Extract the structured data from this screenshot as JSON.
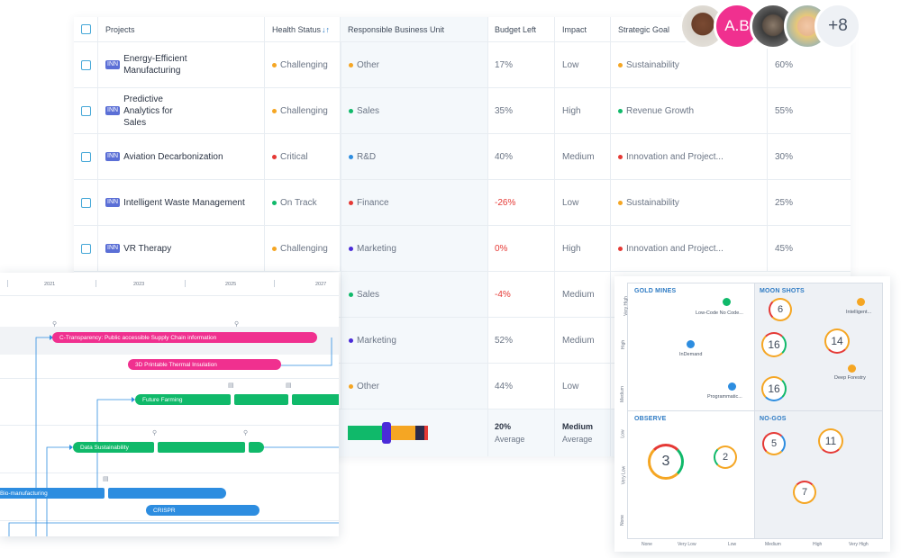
{
  "header": {
    "projects": "Projects",
    "health": "Health Status",
    "sort_icon": "↓↑",
    "unit": "Responsible Business Unit",
    "budget": "Budget Left",
    "impact": "Impact",
    "goal": "Strategic Goal"
  },
  "tag_label": "INN",
  "rows": [
    {
      "name": "Energy-Efficient Manufacturing",
      "health": "Challenging",
      "unit": "Other",
      "budget": "17%",
      "impact": "Low",
      "goal": "Sustainability",
      "pct": "60%"
    },
    {
      "name": "Predictive Analytics for Sales",
      "health": "Challenging",
      "unit": "Sales",
      "budget": "35%",
      "impact": "High",
      "goal": "Revenue Growth",
      "pct": "55%"
    },
    {
      "name": "Aviation Decarbonization",
      "health": "Critical",
      "unit": "R&D",
      "budget": "40%",
      "impact": "Medium",
      "goal": "Innovation and Project...",
      "pct": "30%"
    },
    {
      "name": "Intelligent Waste Management",
      "health": "On Track",
      "unit": "Finance",
      "budget": "-26%",
      "impact": "Low",
      "goal": "Sustainability",
      "pct": "25%"
    },
    {
      "name": "VR Therapy",
      "health": "Challenging",
      "unit": "Marketing",
      "budget": "0%",
      "impact": "High",
      "goal": "Innovation and Project...",
      "pct": "45%"
    },
    {
      "unit": "Sales",
      "budget": "-4%",
      "impact": "Medium"
    },
    {
      "unit": "Marketing",
      "budget": "52%",
      "impact": "Medium"
    },
    {
      "unit": "Other",
      "budget": "44%",
      "impact": "Low"
    }
  ],
  "summary": {
    "budget": "20%",
    "budget_sub": "Average",
    "impact": "Medium",
    "impact_sub": "Average",
    "stack": [
      0.27,
      0.07,
      0.19,
      0.07,
      0.03
    ]
  },
  "avatars": {
    "initials": "A.B",
    "more": "+8"
  },
  "gantt": {
    "years": [
      "2021",
      "2023",
      "2025",
      "2027"
    ],
    "bars": [
      "C-Transparency: Public accessible Supply Chain information",
      "3D Printable Thermal Insulation",
      "Future Farming",
      "Data Sustainability",
      "Bio-manufacturing",
      "CRISPR"
    ]
  },
  "matrix": {
    "quadrants": [
      "GOLD MINES",
      "MOON SHOTS",
      "OBSERVE",
      "NO-GOS"
    ],
    "items": [
      "Low-Code No Code...",
      "InDemand",
      "Programmatic...",
      "Intelligent...",
      "Deep Forestry"
    ],
    "bubbles": [
      "6",
      "16",
      "14",
      "16",
      "3",
      "2",
      "5",
      "11",
      "7"
    ],
    "y_labels": [
      "Very High",
      "High",
      "Medium",
      "Low",
      "Very Low",
      "None"
    ],
    "x_labels": [
      "None",
      "Very Low",
      "Low",
      "Medium",
      "High",
      "Very High"
    ]
  },
  "colors": {
    "orange": "#f5a623",
    "green": "#10b96a",
    "blue": "#2d8de0",
    "red": "#e53935",
    "purple": "#4a2bd8",
    "pink": "#f0308f",
    "accent": "#46a8d8"
  }
}
